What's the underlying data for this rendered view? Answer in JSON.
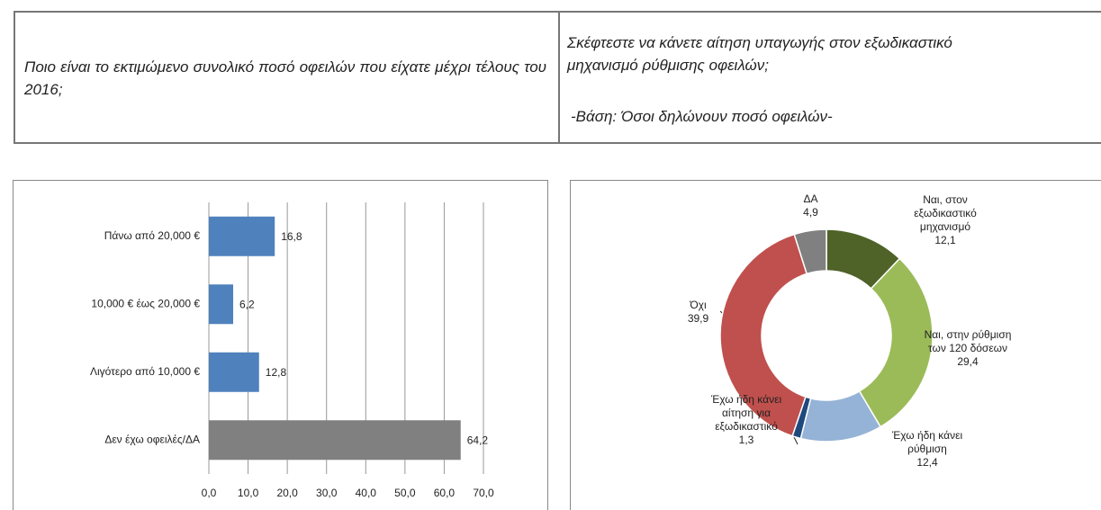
{
  "header": {
    "left": "Ποιο είναι το εκτιμώμενο συνολικό ποσό οφειλών που είχατε μέχρι τέλους του 2016;",
    "right": "Σκέφτεστε να κάνετε αίτηση υπαγωγής στον εξωδικαστικό μηχανισμό ρύθμισης οφειλών;",
    "right_note": "-Βάση: Όσοι δηλώνουν ποσό οφειλών-"
  },
  "chart_data": [
    {
      "type": "bar",
      "orientation": "horizontal",
      "categories": [
        "Πάνω από 20,000 €",
        "10,000 € έως 20,000 €",
        "Λιγότερο από 10,000 €",
        "Δεν έχω οφειλές/ΔΑ"
      ],
      "values": [
        16.8,
        6.2,
        12.8,
        64.2
      ],
      "value_labels": [
        "16,8",
        "6,2",
        "12,8",
        "64,2"
      ],
      "colors": [
        "#4f81bd",
        "#4f81bd",
        "#4f81bd",
        "#808080"
      ],
      "xlim": [
        0,
        70
      ],
      "xticks": [
        {
          "value": 0,
          "label": "0,0"
        },
        {
          "value": 10,
          "label": "10,0"
        },
        {
          "value": 20,
          "label": "20,0"
        },
        {
          "value": 30,
          "label": "30,0"
        },
        {
          "value": 40,
          "label": "40,0"
        },
        {
          "value": 50,
          "label": "50,0"
        },
        {
          "value": 60,
          "label": "60,0"
        },
        {
          "value": 70,
          "label": "70,0"
        }
      ],
      "grid": true
    },
    {
      "type": "donut",
      "categories": [
        "Ναι, στον εξωδικαστικό μηχανισμό",
        "Ναι, στην ρύθμιση των 120 δόσεων",
        "Έχω ήδη κάνει ρύθμιση",
        "Έχω ήδη κάνει αίτηση για εξωδικαστικό",
        "Όχι",
        "ΔΑ"
      ],
      "values": [
        12.1,
        29.4,
        12.4,
        1.3,
        39.9,
        4.9
      ],
      "value_labels": [
        "12,1",
        "29,4",
        "12,4",
        "1,3",
        "39,9",
        "4,9"
      ],
      "colors": [
        "#4f6228",
        "#9bbb59",
        "#95b3d7",
        "#1f497d",
        "#c0504d",
        "#808080"
      ]
    }
  ]
}
